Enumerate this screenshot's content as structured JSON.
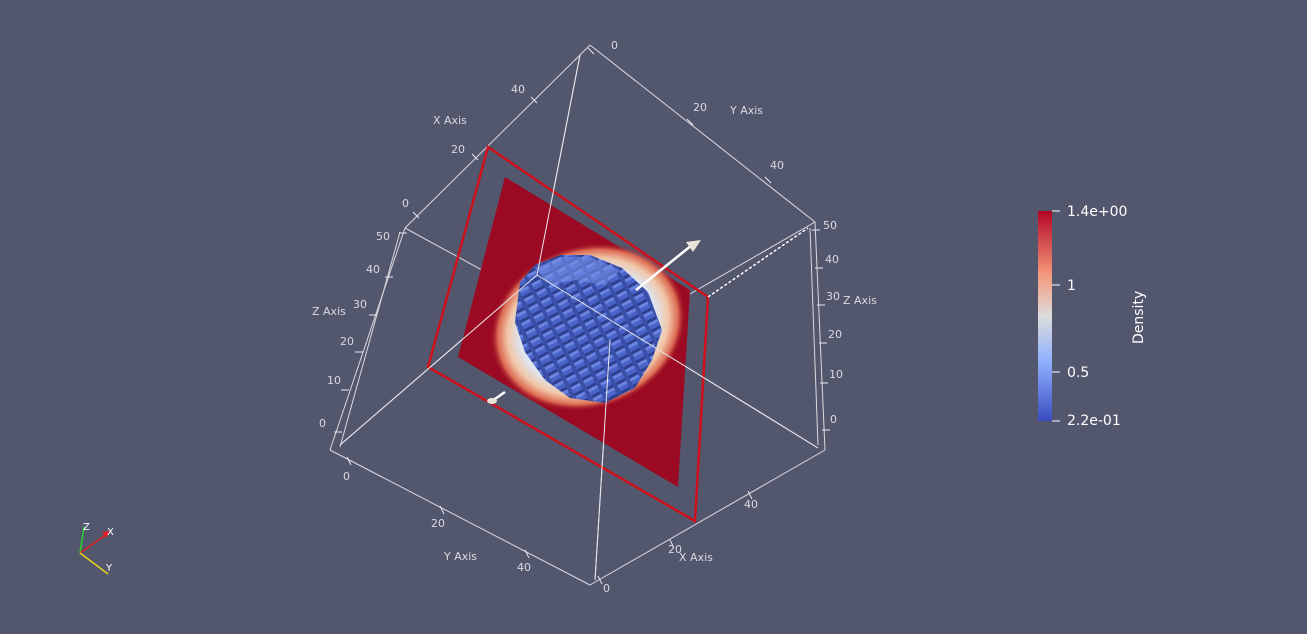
{
  "axes": {
    "x_title": "X Axis",
    "y_title": "Y Axis",
    "z_title": "Z Axis",
    "x_ticks_top": [
      "0",
      "20",
      "40"
    ],
    "y_ticks_top": [
      "0",
      "20",
      "40"
    ],
    "z_ticks_left": [
      "0",
      "10",
      "20",
      "30",
      "40",
      "50"
    ],
    "z_ticks_right": [
      "0",
      "10",
      "20",
      "30",
      "40",
      "50"
    ],
    "y_ticks_bottom": [
      "0",
      "20",
      "40"
    ],
    "x_ticks_bottom": [
      "0",
      "20",
      "40"
    ]
  },
  "colorbar": {
    "title": "Density",
    "labels": [
      "1.4e+00",
      "1",
      "0.5",
      "2.2e-01"
    ],
    "colors": {
      "top": "#b40426",
      "upper_mid": "#f4987a",
      "mid": "#dddcdc",
      "lower_mid": "#8db0fe",
      "bottom": "#3b4cc0"
    }
  },
  "orientation_triad": {
    "x": "X",
    "y": "Y",
    "z": "Z"
  },
  "colors": {
    "background": "#52576e",
    "slice_red": "#9b0a22",
    "sphere_blue": "#4a63c8",
    "outline": "#e8e8ec",
    "plane_border": "#d0101c"
  }
}
